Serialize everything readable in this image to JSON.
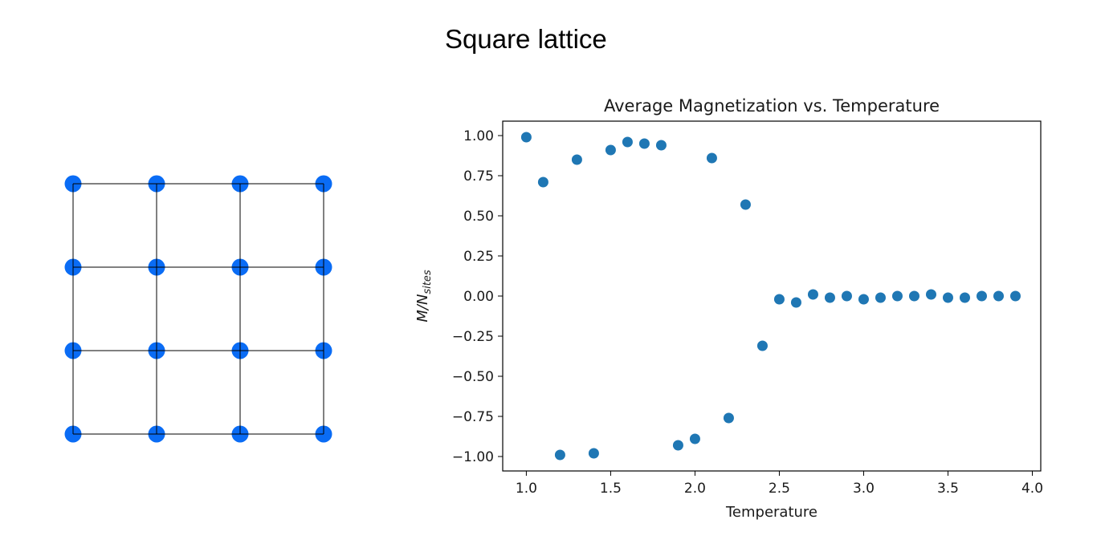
{
  "figure": {
    "title": "Square lattice"
  },
  "lattice": {
    "rows": 4,
    "cols": 4,
    "node_color": "#0a6cf5",
    "edge_color": "#000000"
  },
  "chart_data": {
    "type": "scatter",
    "title": "Average Magnetization vs. Temperature",
    "xlabel": "Temperature",
    "ylabel_main": "M/N",
    "ylabel_sub": "sites",
    "xlim": [
      0.86,
      4.05
    ],
    "ylim": [
      -1.09,
      1.09
    ],
    "x_ticks": [
      1.0,
      1.5,
      2.0,
      2.5,
      3.0,
      3.5,
      4.0
    ],
    "x_tick_labels": [
      "1.0",
      "1.5",
      "2.0",
      "2.5",
      "3.0",
      "3.5",
      "4.0"
    ],
    "y_ticks": [
      1.0,
      0.75,
      0.5,
      0.25,
      0.0,
      -0.25,
      -0.5,
      -0.75,
      -1.0
    ],
    "y_tick_labels": [
      "1.00",
      "0.75",
      "0.50",
      "0.25",
      "0.00",
      "−0.25",
      "−0.50",
      "−0.75",
      "−1.00"
    ],
    "grid": false,
    "color": "#1f77b4",
    "series": [
      {
        "x": [
          1.0,
          1.1,
          1.2,
          1.3,
          1.4,
          1.5,
          1.6,
          1.7,
          1.8,
          1.9,
          2.0,
          2.1,
          2.2,
          2.3,
          2.4,
          2.5,
          2.6,
          2.7,
          2.8,
          2.9,
          3.0,
          3.1,
          3.2,
          3.3,
          3.4,
          3.5,
          3.6,
          3.7,
          3.8,
          3.9
        ],
        "y": [
          0.99,
          0.71,
          -0.99,
          0.85,
          -0.98,
          0.91,
          0.96,
          0.95,
          0.94,
          -0.93,
          -0.89,
          0.86,
          -0.76,
          0.57,
          -0.31,
          -0.02,
          -0.04,
          0.01,
          -0.01,
          0.0,
          -0.02,
          -0.01,
          0.0,
          0.0,
          0.01,
          -0.01,
          -0.01,
          0.0,
          0.0,
          0.0
        ]
      }
    ]
  }
}
